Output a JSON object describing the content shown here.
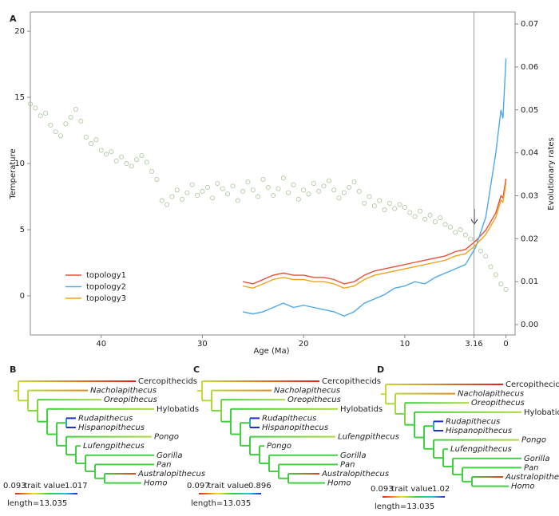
{
  "chart_data": {
    "type": "combo",
    "panel": "A",
    "xlabel": "Age (Ma)",
    "ylabel": "Temperature",
    "y2label": "Evolutionary rates",
    "xlim": [
      47,
      -0.9
    ],
    "xticks": [
      40,
      30,
      20,
      10,
      3.16,
      0
    ],
    "vline": 3.16,
    "ylim": [
      -2.95,
      21.45
    ],
    "yticks": [
      0,
      5,
      10,
      15,
      20
    ],
    "y2lim": [
      -0.0024,
      0.0728
    ],
    "y2ticks": [
      {
        "value": 0,
        "label": "0.00"
      },
      0.01,
      0.02,
      0.03,
      0.04,
      0.05,
      0.06,
      0.07
    ],
    "legend": "lower left",
    "series": [
      {
        "type": "scatter",
        "color": "#a9c59b",
        "x": [
          47,
          46.5,
          46,
          45.5,
          45,
          44.5,
          44,
          43.5,
          43,
          42.5,
          42,
          41.5,
          41,
          40.5,
          40,
          39.5,
          39,
          38.5,
          38,
          37.5,
          37,
          36.5,
          36,
          35.5,
          35,
          34.5,
          34,
          33.5,
          33,
          32.5,
          32,
          31.5,
          31,
          30.5,
          30,
          29.5,
          29,
          28.5,
          28,
          27.5,
          27,
          26.5,
          26,
          25.5,
          25,
          24.5,
          24,
          23.5,
          23,
          22.5,
          22,
          21.5,
          21,
          20.5,
          20,
          19.5,
          19,
          18.5,
          18,
          17.5,
          17,
          16.5,
          16,
          15.5,
          15,
          14.5,
          14,
          13.5,
          13,
          12.5,
          12,
          11.5,
          11,
          10.5,
          10,
          9.5,
          9,
          8.5,
          8,
          7.5,
          7,
          6.5,
          6,
          5.5,
          5,
          4.5,
          4,
          3.5,
          3,
          2.5,
          2,
          1.5,
          1,
          0.5,
          0
        ],
        "values": [
          14.5,
          14.2,
          13.6,
          13.8,
          12.9,
          12.4,
          12.1,
          13.0,
          13.5,
          14.1,
          13.2,
          12.0,
          11.5,
          11.8,
          11.0,
          10.7,
          10.9,
          10.2,
          10.5,
          10.0,
          9.8,
          10.3,
          10.6,
          10.1,
          9.4,
          8.8,
          7.2,
          6.9,
          7.5,
          8.0,
          7.3,
          7.8,
          8.4,
          7.6,
          7.9,
          8.2,
          7.4,
          8.5,
          8.1,
          7.7,
          8.3,
          7.2,
          7.9,
          8.6,
          8.0,
          7.5,
          8.8,
          8.2,
          7.6,
          8.1,
          8.9,
          7.8,
          8.4,
          7.3,
          8.0,
          7.7,
          8.5,
          7.9,
          8.3,
          8.7,
          8.0,
          7.4,
          7.8,
          8.2,
          8.6,
          7.9,
          7.0,
          7.5,
          6.8,
          7.2,
          6.5,
          7.0,
          6.6,
          6.9,
          6.7,
          6.3,
          6.0,
          6.4,
          5.8,
          6.1,
          5.6,
          5.9,
          5.4,
          5.2,
          4.8,
          5.0,
          4.6,
          4.3,
          4.0,
          3.4,
          3.0,
          2.2,
          1.6,
          0.9,
          0.5
        ]
      },
      {
        "type": "line",
        "name": "topology1",
        "color": "#e8503a",
        "axis": "y2",
        "x": [
          26,
          25,
          24,
          23,
          22,
          21,
          20,
          19,
          18,
          17,
          16,
          15,
          14,
          13,
          12,
          11,
          10,
          9,
          8,
          7,
          6,
          5,
          4,
          3,
          2,
          1,
          0.5,
          0.3,
          0
        ],
        "values": [
          0.01,
          0.0095,
          0.0105,
          0.0115,
          0.012,
          0.0115,
          0.0115,
          0.011,
          0.011,
          0.0105,
          0.0095,
          0.01,
          0.0115,
          0.0125,
          0.013,
          0.0135,
          0.014,
          0.0145,
          0.015,
          0.0155,
          0.016,
          0.017,
          0.0175,
          0.0195,
          0.022,
          0.026,
          0.03,
          0.0295,
          0.034
        ]
      },
      {
        "type": "line",
        "name": "topology2",
        "color": "#4fa9e8",
        "axis": "y2",
        "x": [
          26,
          25,
          24,
          23,
          22,
          21,
          20,
          19,
          18,
          17,
          16,
          15,
          14,
          13,
          12,
          11,
          10,
          9,
          8,
          7,
          6,
          5,
          4,
          3,
          2,
          1,
          0.5,
          0.3,
          0
        ],
        "values": [
          0.003,
          0.0025,
          0.003,
          0.004,
          0.005,
          0.004,
          0.0045,
          0.004,
          0.0035,
          0.003,
          0.002,
          0.003,
          0.005,
          0.006,
          0.007,
          0.0085,
          0.009,
          0.01,
          0.0095,
          0.011,
          0.012,
          0.013,
          0.014,
          0.018,
          0.025,
          0.04,
          0.05,
          0.048,
          0.062
        ]
      },
      {
        "type": "line",
        "name": "topology3",
        "color": "#f0a21c",
        "axis": "y2",
        "x": [
          26,
          25,
          24,
          23,
          22,
          21,
          20,
          19,
          18,
          17,
          16,
          15,
          14,
          13,
          12,
          11,
          10,
          9,
          8,
          7,
          6,
          5,
          4,
          3,
          2,
          1,
          0.5,
          0.3,
          0
        ],
        "values": [
          0.009,
          0.0085,
          0.0095,
          0.0105,
          0.011,
          0.0105,
          0.0105,
          0.01,
          0.01,
          0.0095,
          0.0085,
          0.009,
          0.0105,
          0.0115,
          0.012,
          0.0125,
          0.013,
          0.0135,
          0.014,
          0.0145,
          0.015,
          0.016,
          0.0165,
          0.0185,
          0.021,
          0.025,
          0.029,
          0.0285,
          0.033
        ]
      }
    ]
  },
  "trees": [
    {
      "panel": "B",
      "tips": [
        "Cercopithecids",
        "Nacholapithecus",
        "Oreopithecus",
        "Hylobatids",
        "Rudapithecus",
        "Hispanopithecus",
        "Pongo",
        "Lufengpithecus",
        "Gorilla",
        "Pan",
        "Australopithecus",
        "Homo"
      ],
      "italic": [
        false,
        true,
        true,
        false,
        true,
        true,
        true,
        true,
        true,
        true,
        true,
        true
      ],
      "min": "0.093",
      "legend": "trait value",
      "max": "1.017",
      "length": "length=13.035"
    },
    {
      "panel": "C",
      "tips": [
        "Cercopithecids",
        "Nacholapithecus",
        "Oreopithecus",
        "Hylobatids",
        "Rudapithecus",
        "Hispanopithecus",
        "Lufengpithecus",
        "Pongo",
        "Gorilla",
        "Pan",
        "Australopithecus",
        "Homo"
      ],
      "italic": [
        false,
        true,
        true,
        false,
        true,
        true,
        true,
        true,
        true,
        true,
        true,
        true
      ],
      "min": "0.097",
      "legend": "trait value",
      "max": "0.896",
      "length": "length=13.035"
    },
    {
      "panel": "D",
      "tips": [
        "Cercopithecids",
        "Nacholapithecus",
        "Oreopithecus",
        "Hylobatids",
        "Rudapithecus",
        "Hispanopithecus",
        "Pongo",
        "Lufengpithecus",
        "Gorilla",
        "Pan",
        "Australopithecus",
        "Homo"
      ],
      "italic": [
        false,
        true,
        true,
        false,
        true,
        true,
        true,
        true,
        true,
        true,
        true,
        true
      ],
      "min": "0.093",
      "legend": "trait value",
      "max": "1.02",
      "length": "length=13.035"
    }
  ]
}
